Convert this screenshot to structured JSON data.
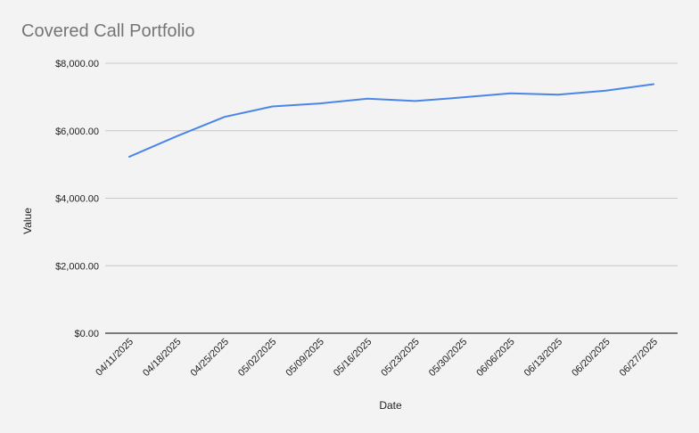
{
  "chart_data": {
    "type": "line",
    "title": "Covered Call Portfolio",
    "xlabel": "Date",
    "ylabel": "Value",
    "categories": [
      "04/11/2025",
      "04/18/2025",
      "04/25/2025",
      "05/02/2025",
      "05/09/2025",
      "05/16/2025",
      "05/23/2025",
      "05/30/2025",
      "06/06/2025",
      "06/13/2025",
      "06/20/2025",
      "06/27/2025"
    ],
    "series": [
      {
        "values": [
          5230,
          5840,
          6410,
          6720,
          6810,
          6950,
          6880,
          6990,
          7110,
          7070,
          7190,
          7380
        ],
        "color": "#4a86e8"
      }
    ],
    "ylim": [
      0,
      8000
    ],
    "yticks": [
      0,
      2000,
      4000,
      6000,
      8000
    ],
    "ytick_labels": [
      "$0.00",
      "$2,000.00",
      "$4,000.00",
      "$6,000.00",
      "$8,000.00"
    ],
    "grid": true,
    "legend": "none"
  }
}
